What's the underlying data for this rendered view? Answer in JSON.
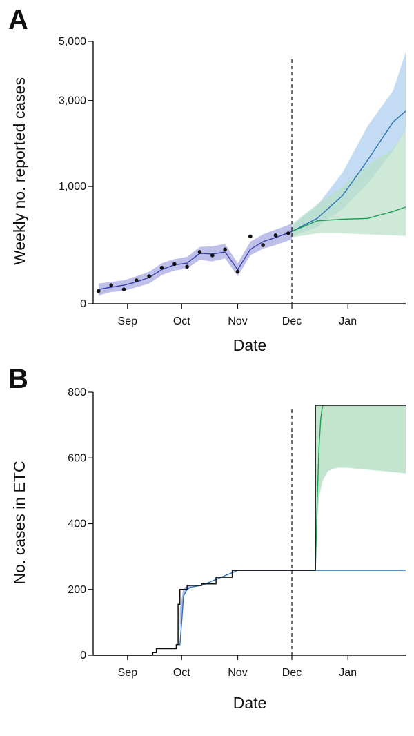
{
  "chart_data": [
    {
      "panel": "A",
      "type": "line",
      "xlabel": "Date",
      "ylabel": "Weekly no. reported cases",
      "x_ticks": [
        "Sep",
        "Oct",
        "Nov",
        "Dec",
        "Jan"
      ],
      "x_tick_days": [
        19,
        49,
        80,
        110,
        141
      ],
      "y_ticks": [
        0,
        1000,
        3000,
        5000
      ],
      "y_tick_labels": [
        "0",
        "1,000",
        "3,000",
        "5,000"
      ],
      "y_scale": "sqrt",
      "ylim": [
        0,
        5000
      ],
      "xlim_days": [
        0,
        173
      ],
      "vline_day": 110,
      "observed": {
        "day": [
          3,
          10,
          17,
          24,
          31,
          38,
          45,
          52,
          59,
          66,
          73,
          80,
          87,
          94,
          101,
          108
        ],
        "value": [
          12,
          25,
          15,
          40,
          55,
          95,
          115,
          100,
          195,
          170,
          215,
          75,
          330,
          250,
          340,
          360
        ]
      },
      "fit_line": {
        "day": [
          3,
          10,
          17,
          24,
          31,
          38,
          45,
          52,
          59,
          66,
          73,
          80,
          87,
          94,
          101,
          108,
          110
        ],
        "value": [
          15,
          20,
          25,
          35,
          50,
          85,
          110,
          120,
          185,
          180,
          195,
          85,
          215,
          280,
          320,
          365,
          380
        ]
      },
      "fit_band": {
        "day": [
          3,
          10,
          17,
          24,
          31,
          38,
          45,
          52,
          59,
          66,
          73,
          80,
          87,
          94,
          101,
          108,
          110
        ],
        "lower": [
          5,
          10,
          12,
          20,
          30,
          60,
          80,
          90,
          140,
          130,
          150,
          55,
          170,
          220,
          250,
          290,
          300
        ],
        "upper": [
          30,
          35,
          40,
          55,
          75,
          120,
          145,
          160,
          235,
          240,
          260,
          120,
          280,
          350,
          400,
          450,
          470
        ]
      },
      "series": [
        {
          "color": "#2a6fb8",
          "band_color": "#a9cdee",
          "day": [
            110,
            124,
            138,
            152,
            166,
            173
          ],
          "value": [
            380,
            530,
            850,
            1500,
            2400,
            2700
          ],
          "lower": [
            330,
            430,
            650,
            1050,
            1700,
            2200
          ],
          "upper": [
            440,
            700,
            1250,
            2300,
            3300,
            4600
          ]
        },
        {
          "color": "#1e9e55",
          "band_color": "#b9e0c6",
          "day": [
            110,
            124,
            138,
            152,
            166,
            173
          ],
          "value": [
            380,
            500,
            520,
            530,
            620,
            680
          ],
          "lower": [
            320,
            360,
            360,
            350,
            340,
            335
          ],
          "upper": [
            460,
            720,
            1000,
            1400,
            1750,
            2200
          ]
        }
      ]
    },
    {
      "panel": "B",
      "type": "line",
      "xlabel": "Date",
      "ylabel": "No. cases in ETC",
      "x_ticks": [
        "Sep",
        "Oct",
        "Nov",
        "Dec",
        "Jan"
      ],
      "x_tick_days": [
        19,
        49,
        80,
        110,
        141
      ],
      "y_ticks": [
        0,
        200,
        400,
        600,
        800
      ],
      "y_tick_labels": [
        "0",
        "200",
        "400",
        "600",
        "800"
      ],
      "ylim": [
        0,
        800
      ],
      "xlim_days": [
        0,
        173
      ],
      "vline_day": 110,
      "capacity": {
        "day": [
          0,
          33,
          33,
          35,
          35,
          46,
          46,
          47,
          47,
          48,
          48,
          52,
          52,
          60,
          60,
          68,
          68,
          77,
          77,
          123,
          123,
          173
        ],
        "value": [
          0,
          0,
          8,
          8,
          20,
          20,
          32,
          32,
          155,
          155,
          200,
          200,
          212,
          212,
          217,
          217,
          237,
          237,
          258,
          258,
          760,
          760
        ]
      },
      "fit_band": {
        "day": [
          48,
          50,
          52,
          54
        ],
        "lower": [
          70,
          180,
          200,
          207
        ],
        "upper": [
          140,
          205,
          210,
          212
        ]
      },
      "series": [
        {
          "color": "#2a6fb8",
          "day": [
            48,
            49,
            50,
            52,
            54,
            60,
            70,
            80,
            123,
            173
          ],
          "value": [
            30,
            100,
            180,
            200,
            207,
            212,
            235,
            258,
            258,
            258
          ]
        },
        {
          "color": "#1e9e55",
          "day": [
            123,
            124,
            125,
            126,
            127,
            128
          ],
          "value": [
            258,
            470,
            630,
            720,
            760,
            760
          ]
        }
      ],
      "band": {
        "color": "#b9e0c6",
        "day": [
          123,
          124,
          125,
          127,
          130,
          135,
          140,
          150,
          160,
          173
        ],
        "lower": [
          258,
          400,
          480,
          530,
          560,
          570,
          570,
          565,
          560,
          553
        ],
        "upper": [
          760,
          760,
          760,
          760,
          760,
          760,
          760,
          760,
          760,
          760
        ]
      }
    }
  ]
}
